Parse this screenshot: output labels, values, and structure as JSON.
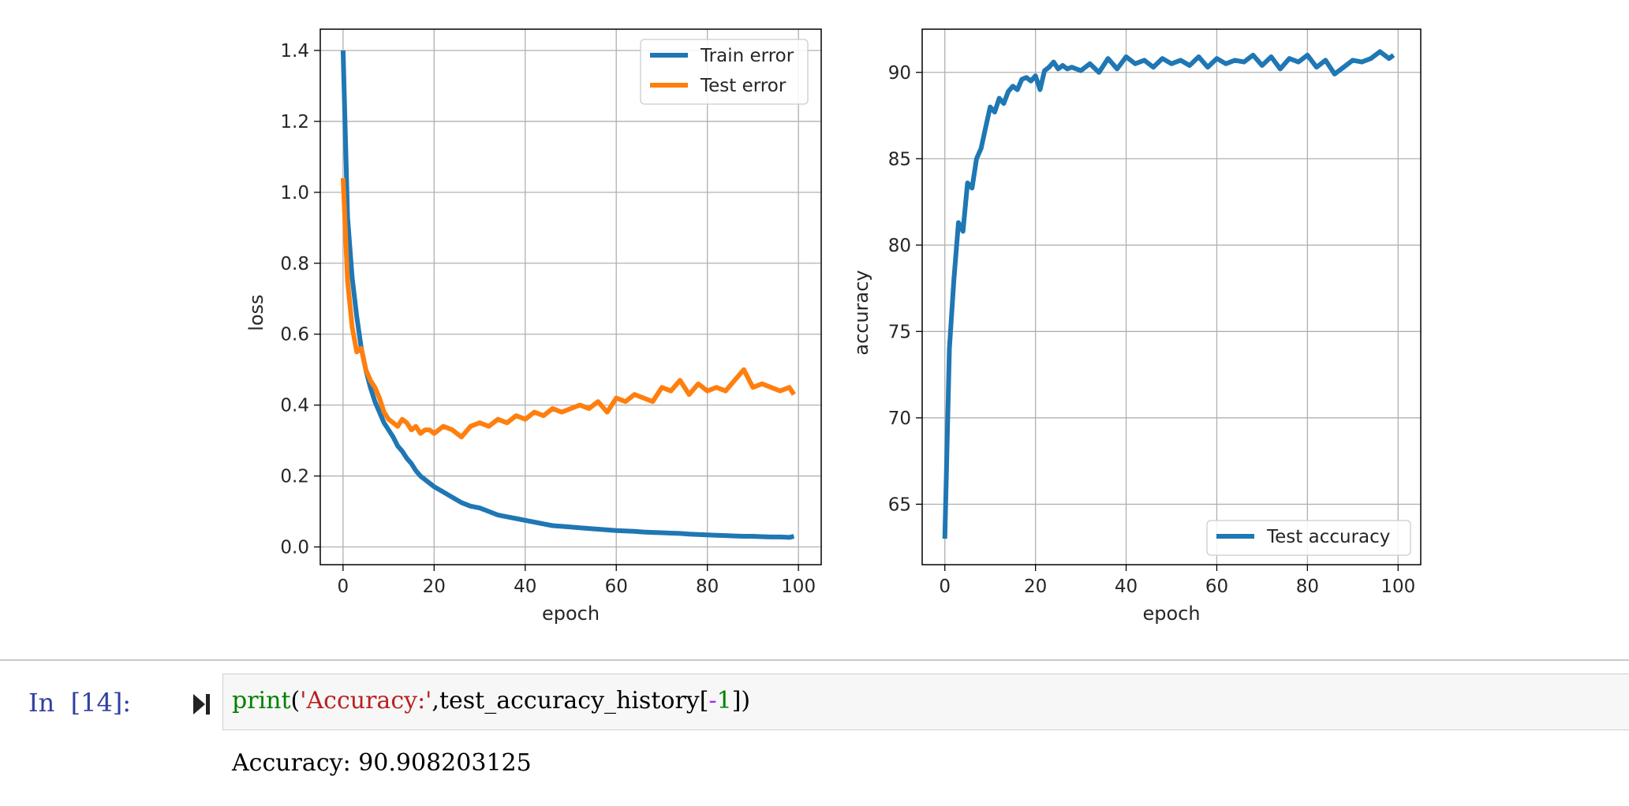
{
  "chart_data": [
    {
      "type": "line",
      "xlabel": "epoch",
      "ylabel": "loss",
      "xlim": [
        -5,
        105
      ],
      "ylim": [
        -0.05,
        1.46
      ],
      "xticks": [
        0,
        20,
        40,
        60,
        80,
        100
      ],
      "yticks": [
        0.0,
        0.2,
        0.4,
        0.6,
        0.8,
        1.0,
        1.2,
        1.4
      ],
      "ytick_labels": [
        "0.0",
        "0.2",
        "0.4",
        "0.6",
        "0.8",
        "1.0",
        "1.2",
        "1.4"
      ],
      "grid": true,
      "legend": "top-right",
      "series": [
        {
          "name": "Train error",
          "color": "#1f77b4",
          "x": [
            0,
            1,
            2,
            3,
            4,
            5,
            6,
            7,
            8,
            9,
            10,
            11,
            12,
            13,
            14,
            15,
            16,
            17,
            18,
            19,
            20,
            22,
            24,
            26,
            28,
            30,
            32,
            34,
            36,
            38,
            40,
            42,
            44,
            46,
            48,
            50,
            52,
            54,
            56,
            58,
            60,
            62,
            64,
            66,
            68,
            70,
            72,
            74,
            76,
            78,
            80,
            82,
            84,
            86,
            88,
            90,
            92,
            94,
            96,
            98,
            99
          ],
          "values": [
            1.4,
            0.93,
            0.76,
            0.65,
            0.56,
            0.5,
            0.45,
            0.41,
            0.38,
            0.35,
            0.33,
            0.31,
            0.285,
            0.27,
            0.25,
            0.235,
            0.215,
            0.2,
            0.19,
            0.18,
            0.17,
            0.155,
            0.14,
            0.125,
            0.115,
            0.11,
            0.1,
            0.09,
            0.085,
            0.08,
            0.075,
            0.07,
            0.065,
            0.06,
            0.058,
            0.056,
            0.054,
            0.052,
            0.05,
            0.048,
            0.046,
            0.045,
            0.044,
            0.042,
            0.041,
            0.04,
            0.039,
            0.038,
            0.036,
            0.035,
            0.034,
            0.033,
            0.032,
            0.031,
            0.03,
            0.03,
            0.029,
            0.028,
            0.028,
            0.027,
            0.03
          ]
        },
        {
          "name": "Test error",
          "color": "#ff7f0e",
          "x": [
            0,
            1,
            2,
            3,
            4,
            5,
            6,
            7,
            8,
            9,
            10,
            11,
            12,
            13,
            14,
            15,
            16,
            17,
            18,
            19,
            20,
            22,
            24,
            26,
            28,
            30,
            32,
            34,
            36,
            38,
            40,
            42,
            44,
            46,
            48,
            50,
            52,
            54,
            56,
            58,
            60,
            62,
            64,
            66,
            68,
            70,
            72,
            74,
            76,
            78,
            80,
            82,
            84,
            86,
            88,
            90,
            92,
            94,
            96,
            98,
            99
          ],
          "values": [
            1.04,
            0.75,
            0.62,
            0.55,
            0.56,
            0.5,
            0.47,
            0.45,
            0.42,
            0.38,
            0.36,
            0.35,
            0.34,
            0.36,
            0.35,
            0.33,
            0.34,
            0.32,
            0.33,
            0.33,
            0.32,
            0.34,
            0.33,
            0.31,
            0.34,
            0.35,
            0.34,
            0.36,
            0.35,
            0.37,
            0.36,
            0.38,
            0.37,
            0.39,
            0.38,
            0.39,
            0.4,
            0.39,
            0.41,
            0.38,
            0.42,
            0.41,
            0.43,
            0.42,
            0.41,
            0.45,
            0.44,
            0.47,
            0.43,
            0.46,
            0.44,
            0.45,
            0.44,
            0.47,
            0.5,
            0.45,
            0.46,
            0.45,
            0.44,
            0.45,
            0.43
          ]
        }
      ]
    },
    {
      "type": "line",
      "xlabel": "epoch",
      "ylabel": "accuracy",
      "xlim": [
        -5,
        105
      ],
      "ylim": [
        61.5,
        92.5
      ],
      "xticks": [
        0,
        20,
        40,
        60,
        80,
        100
      ],
      "yticks": [
        65,
        70,
        75,
        80,
        85,
        90
      ],
      "ytick_labels": [
        "65",
        "70",
        "75",
        "80",
        "85",
        "90"
      ],
      "grid": true,
      "legend": "bottom-right",
      "series": [
        {
          "name": "Test accuracy",
          "color": "#1f77b4",
          "x": [
            0,
            1,
            2,
            3,
            4,
            5,
            6,
            7,
            8,
            9,
            10,
            11,
            12,
            13,
            14,
            15,
            16,
            17,
            18,
            19,
            20,
            21,
            22,
            23,
            24,
            25,
            26,
            27,
            28,
            30,
            32,
            34,
            36,
            38,
            40,
            42,
            44,
            46,
            48,
            50,
            52,
            54,
            56,
            58,
            60,
            62,
            64,
            66,
            68,
            70,
            72,
            74,
            76,
            78,
            80,
            82,
            84,
            86,
            88,
            90,
            92,
            94,
            96,
            98,
            99
          ],
          "values": [
            63.0,
            74.0,
            78.0,
            81.3,
            80.8,
            83.6,
            83.3,
            85.0,
            85.6,
            86.8,
            88.0,
            87.7,
            88.5,
            88.2,
            88.9,
            89.2,
            89.0,
            89.6,
            89.7,
            89.5,
            89.8,
            89.0,
            90.1,
            90.3,
            90.6,
            90.2,
            90.4,
            90.2,
            90.3,
            90.1,
            90.5,
            90.0,
            90.8,
            90.2,
            90.9,
            90.5,
            90.7,
            90.3,
            90.8,
            90.5,
            90.7,
            90.4,
            90.9,
            90.3,
            90.8,
            90.5,
            90.7,
            90.6,
            91.0,
            90.4,
            90.9,
            90.2,
            90.8,
            90.6,
            91.0,
            90.3,
            90.7,
            89.9,
            90.3,
            90.7,
            90.6,
            90.8,
            91.2,
            90.8,
            91.0
          ]
        }
      ]
    }
  ],
  "cell": {
    "prompt": "In  [14]:",
    "code": {
      "func": "print",
      "open_paren": "(",
      "string": "'Accuracy:'",
      "comma": ",",
      "var": "test_accuracy_history",
      "open_bracket": "[",
      "minus": "-",
      "index": "1",
      "close": "])"
    },
    "output": "Accuracy: 90.908203125"
  }
}
